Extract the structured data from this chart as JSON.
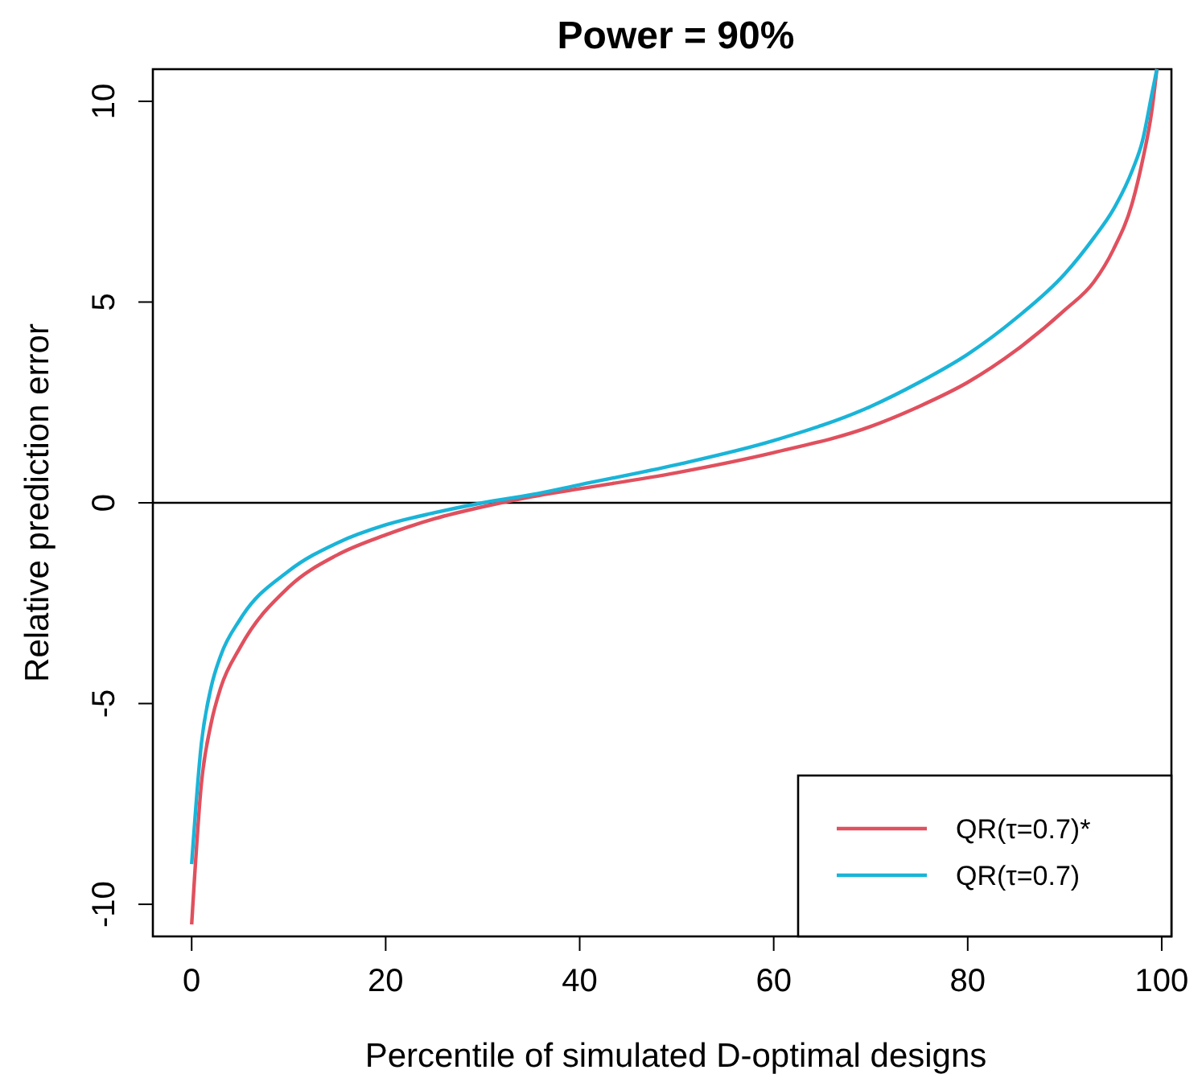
{
  "chart_data": {
    "type": "line",
    "title": "Power = 90%",
    "xlabel": "Percentile of simulated D-optimal designs",
    "ylabel": "Relative prediction error",
    "xlim": [
      -4,
      101
    ],
    "ylim": [
      -10.8,
      10.8
    ],
    "xticks": [
      0,
      20,
      40,
      60,
      80,
      100
    ],
    "yticks": [
      -10,
      -5,
      0,
      5,
      10
    ],
    "x": [
      0,
      1,
      2,
      3,
      5,
      10,
      15,
      20,
      25,
      30,
      35,
      40,
      50,
      60,
      70,
      75,
      80,
      85,
      90,
      93,
      95,
      97,
      98,
      99,
      99.5
    ],
    "series": [
      {
        "name": "QR(τ=0.7)*",
        "color": "#e0505e",
        "values": [
          -10.5,
          -7,
          -5.5,
          -4.6,
          -3.6,
          -2.1,
          -1.3,
          -0.8,
          -0.4,
          -0.1,
          0.15,
          0.35,
          0.75,
          1.25,
          1.9,
          2.4,
          3.0,
          3.8,
          4.8,
          5.5,
          6.3,
          7.5,
          8.5,
          9.8,
          10.8
        ]
      },
      {
        "name": "QR(τ=0.7)",
        "color": "#1ab4d8",
        "values": [
          -9,
          -6,
          -4.6,
          -3.8,
          -2.9,
          -1.7,
          -1.0,
          -0.55,
          -0.25,
          0.0,
          0.2,
          0.45,
          0.95,
          1.55,
          2.4,
          3.0,
          3.7,
          4.6,
          5.7,
          6.6,
          7.3,
          8.3,
          9.0,
          10.2,
          10.8
        ]
      }
    ],
    "ref_lines": [
      {
        "axis": "y",
        "value": 0,
        "color": "#000000"
      }
    ],
    "legend": "bottom right",
    "grid": false,
    "marker": "none",
    "line_style": "solid"
  }
}
